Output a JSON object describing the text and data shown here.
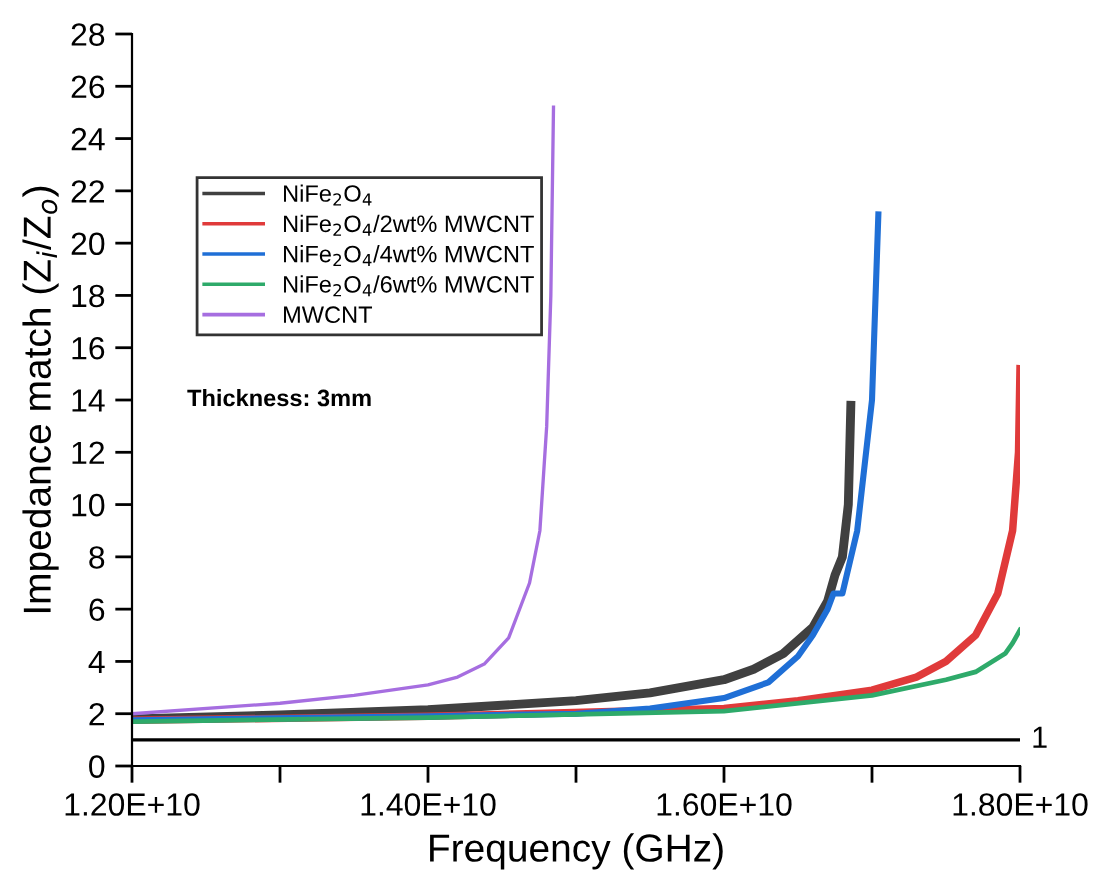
{
  "chart_data": {
    "type": "line",
    "xlabel": "Frequency (GHz)",
    "ylabel": "Impedance match (Z$_{i}$/Z$_{o}$)",
    "xlim": [
      12000000000.0,
      18000000000.0
    ],
    "xticks": [
      {
        "value": 12000000000.0,
        "label": "1.20E+10"
      },
      {
        "value": 13000000000.0,
        "label": null
      },
      {
        "value": 14000000000.0,
        "label": "1.40E+10"
      },
      {
        "value": 15000000000.0,
        "label": null
      },
      {
        "value": 16000000000.0,
        "label": "1.60E+10"
      },
      {
        "value": 17000000000.0,
        "label": null
      },
      {
        "value": 18000000000.0,
        "label": "1.80E+10"
      }
    ],
    "ylim": [
      0,
      28
    ],
    "yticks": [
      0,
      2,
      4,
      6,
      8,
      10,
      12,
      14,
      16,
      18,
      20,
      22,
      24,
      26,
      28
    ],
    "grid": false,
    "legend": "top left",
    "line_style": "solid",
    "marker": "none",
    "ref_lines": [
      {
        "axis": "y",
        "value": 1,
        "label": "1",
        "color": "#000000"
      }
    ],
    "annotations": [
      "Thickness: 3mm"
    ],
    "series": [
      {
        "name": "NiFe$_{2}$O$_{4}$",
        "color": "#404040",
        "x": [
          12000000000.0,
          13000000000.0,
          14000000000.0,
          15000000000.0,
          15500000000.0,
          16000000000.0,
          16200000000.0,
          16400000000.0,
          16600000000.0,
          16700000000.0,
          16750000000.0,
          16800000000.0,
          16840000000.0,
          16857000000.0
        ],
        "values": [
          1.8,
          1.95,
          2.15,
          2.5,
          2.8,
          3.3,
          3.7,
          4.3,
          5.3,
          6.3,
          7.3,
          8.0,
          10.0,
          13.8
        ]
      },
      {
        "name": "NiFe$_{2}$O$_{4}$/2wt% MWCNT",
        "color": "#e03a3a",
        "x": [
          12000000000.0,
          14000000000.0,
          16000000000.0,
          16500000000.0,
          17000000000.0,
          17300000000.0,
          17500000000.0,
          17700000000.0,
          17850000000.0,
          17950000000.0,
          17990000000.0,
          18000000000.0
        ],
        "values": [
          1.75,
          1.9,
          2.2,
          2.5,
          2.9,
          3.4,
          4.0,
          5.0,
          6.6,
          9.0,
          12.0,
          15.2
        ]
      },
      {
        "name": "NiFe$_{2}$O$_{4}$/4wt% MWCNT",
        "color": "#1f6fd6",
        "x": [
          12000000000.0,
          14000000000.0,
          15000000000.0,
          15500000000.0,
          16000000000.0,
          16300000000.0,
          16500000000.0,
          16600000000.0,
          16700000000.0,
          16740000000.0,
          16800000000.0,
          16900000000.0,
          17000000000.0,
          17043000000.0
        ],
        "values": [
          1.75,
          1.9,
          2.0,
          2.2,
          2.6,
          3.2,
          4.2,
          5.0,
          6.0,
          6.6,
          6.6,
          9.0,
          14.0,
          21.1
        ]
      },
      {
        "name": "NiFe$_{2}$O$_{4}$/6wt% MWCNT",
        "color": "#2eaa6a",
        "x": [
          12000000000.0,
          14000000000.0,
          16000000000.0,
          17000000000.0,
          17500000000.0,
          17700000000.0,
          17900000000.0,
          17950000000.0,
          18000000000.0
        ],
        "values": [
          1.7,
          1.85,
          2.1,
          2.7,
          3.3,
          3.6,
          4.3,
          4.7,
          5.2
        ]
      },
      {
        "name": "MWCNT",
        "color": "#a66ee0",
        "x": [
          12000000000.0,
          13000000000.0,
          13500000000.0,
          14000000000.0,
          14200000000.0,
          14380000000.0,
          14545000000.0,
          14686000000.0,
          14756000000.0,
          14802000000.0,
          14830000000.0,
          14848000000.0
        ],
        "values": [
          2.0,
          2.4,
          2.7,
          3.1,
          3.4,
          3.9,
          4.9,
          7.0,
          9.0,
          13.0,
          18.0,
          25.2
        ]
      }
    ]
  }
}
